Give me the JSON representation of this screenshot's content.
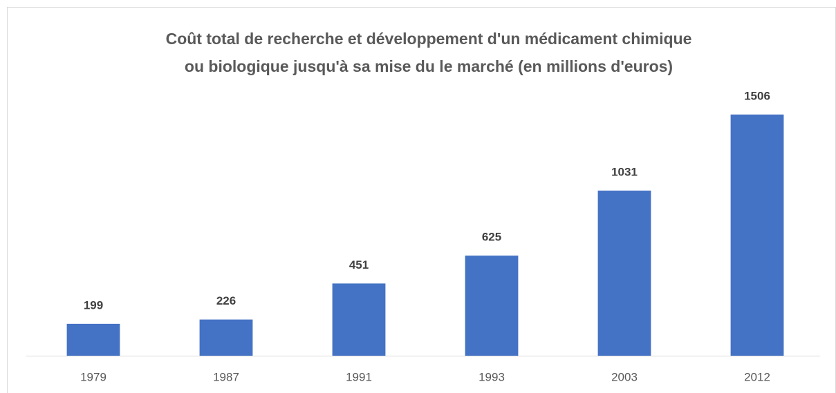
{
  "chart_data": {
    "type": "bar",
    "title": [
      "Coût total de recherche et développement d'un médicament chimique",
      "ou biologique jusqu'à sa mise du le marché (en millions d'euros)"
    ],
    "categories": [
      "1979",
      "1987",
      "1991",
      "1993",
      "2003",
      "2012"
    ],
    "values": [
      199,
      226,
      451,
      625,
      1031,
      1506
    ],
    "color": "#4472c4",
    "ylim": [
      0,
      1600
    ]
  }
}
